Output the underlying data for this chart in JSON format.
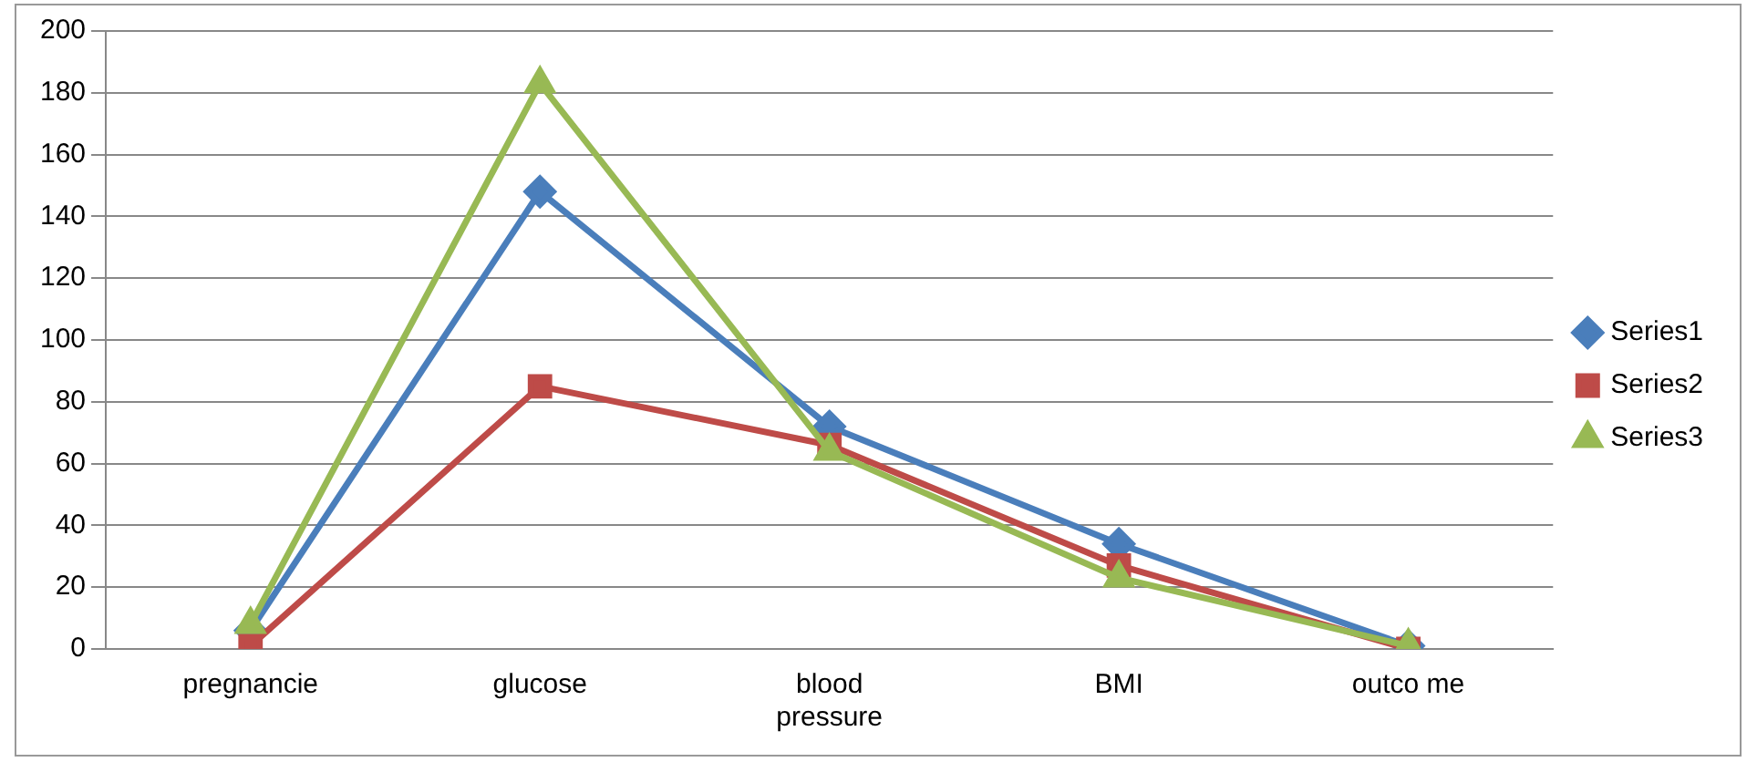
{
  "chart_data": {
    "type": "line",
    "categories": [
      "pregnancie",
      "glucose",
      "blood pressure",
      "BMI",
      "outco me"
    ],
    "series": [
      {
        "name": "Series1",
        "color": "#4a7ebb",
        "marker": "diamond",
        "values": [
          6,
          148,
          72,
          34,
          1
        ]
      },
      {
        "name": "Series2",
        "color": "#be4b48",
        "marker": "square",
        "values": [
          1,
          85,
          66,
          27,
          0
        ]
      },
      {
        "name": "Series3",
        "color": "#98b954",
        "marker": "triangle",
        "values": [
          8,
          183,
          64,
          23,
          1
        ]
      }
    ],
    "ylim": [
      0,
      200
    ],
    "yticks": [
      0,
      20,
      40,
      60,
      80,
      100,
      120,
      140,
      160,
      180,
      200
    ],
    "grid": "y",
    "legend": "right",
    "line_style": "solid"
  }
}
